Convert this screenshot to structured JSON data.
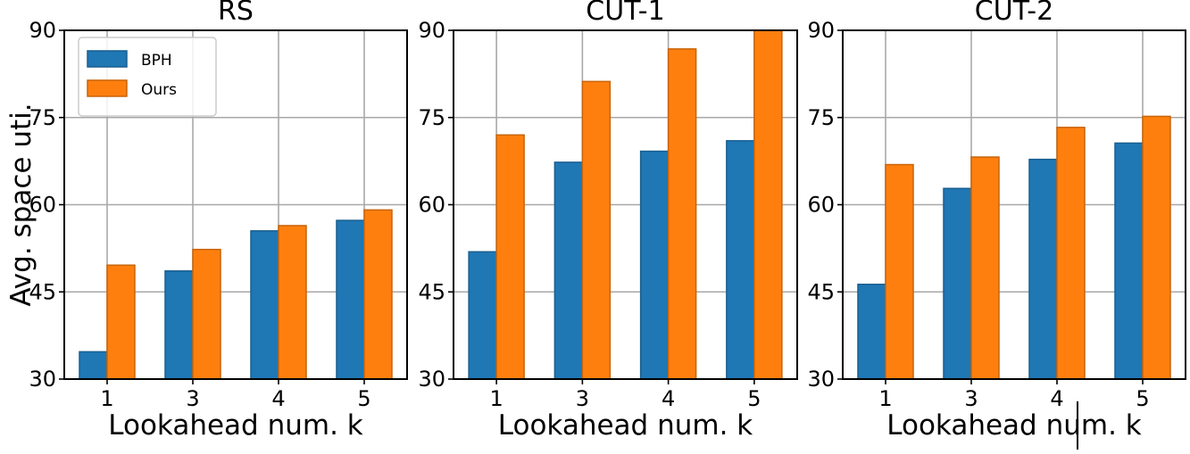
{
  "colors": {
    "series": [
      "#1f77b4",
      "#ff7f0e"
    ],
    "series_edge": [
      "#1a5f90",
      "#c8640a"
    ],
    "grid": "#a8a8a8"
  },
  "chart_data": [
    {
      "type": "bar",
      "title": "RS",
      "categories": [
        "1",
        "3",
        "4",
        "5"
      ],
      "series": [
        {
          "name": "BPH",
          "values": [
            34.7,
            48.6,
            55.5,
            57.3
          ]
        },
        {
          "name": "Ours",
          "values": [
            49.6,
            52.3,
            56.4,
            59.1
          ]
        }
      ],
      "xlabel": "Lookahead num. k",
      "ylabel": "Avg. space uti.",
      "ylim": [
        30,
        90
      ],
      "yticks": [
        "30",
        "45",
        "60",
        "75",
        "90"
      ],
      "grid": true,
      "legend": "top-left"
    },
    {
      "type": "bar",
      "title": "CUT-1",
      "categories": [
        "1",
        "3",
        "4",
        "5"
      ],
      "series": [
        {
          "name": "BPH",
          "values": [
            51.9,
            67.3,
            69.2,
            71.0
          ]
        },
        {
          "name": "Ours",
          "values": [
            72.0,
            81.2,
            86.8,
            90.0
          ]
        }
      ],
      "xlabel": "Lookahead num. k",
      "ylim": [
        30,
        90
      ],
      "yticks": [
        "30",
        "45",
        "60",
        "75",
        "90"
      ],
      "grid": true
    },
    {
      "type": "bar",
      "title": "CUT-2",
      "categories": [
        "1",
        "3",
        "4",
        "5"
      ],
      "series": [
        {
          "name": "BPH",
          "values": [
            46.3,
            62.8,
            67.8,
            70.6
          ]
        },
        {
          "name": "Ours",
          "values": [
            66.9,
            68.2,
            73.3,
            75.2
          ]
        }
      ],
      "xlabel": "Lookahead num. k",
      "ylim": [
        30,
        90
      ],
      "yticks": [
        "30",
        "45",
        "60",
        "75",
        "90"
      ],
      "grid": true
    }
  ]
}
